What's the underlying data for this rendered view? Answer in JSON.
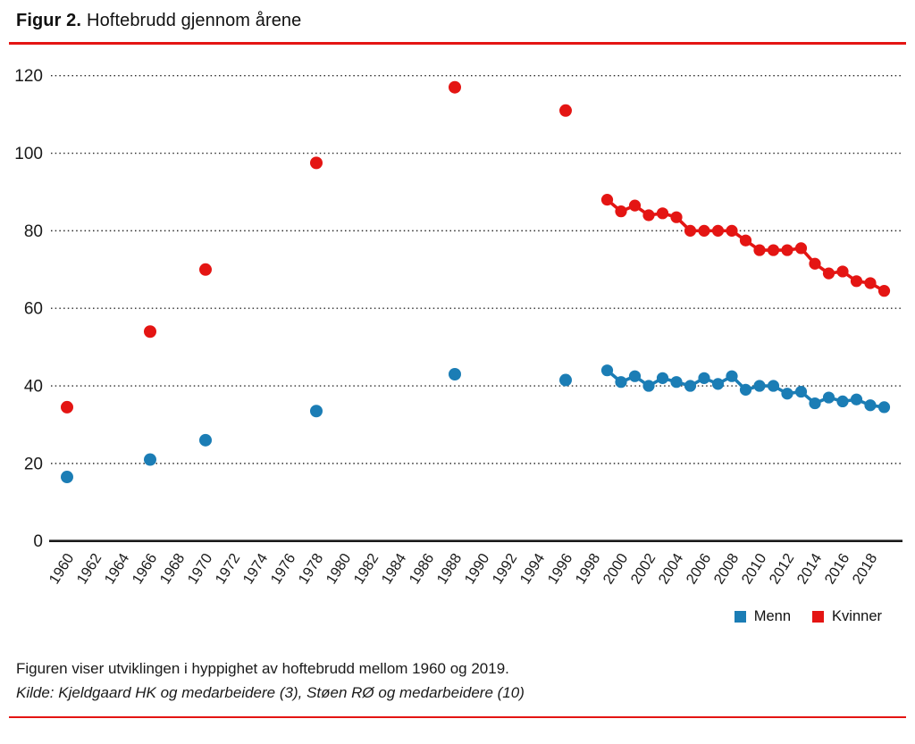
{
  "header": {
    "figure_label": "Figur 2.",
    "title": "Hoftebrudd gjennom årene"
  },
  "chart_data": {
    "type": "scatter",
    "title": "Figur 2. Hoftebrudd gjennom årene",
    "xlabel": "",
    "ylabel": "",
    "ylim": [
      0,
      120
    ],
    "yticks": [
      0,
      20,
      40,
      60,
      80,
      100,
      120
    ],
    "xticks": [
      1960,
      1962,
      1964,
      1966,
      1968,
      1970,
      1972,
      1974,
      1976,
      1978,
      1980,
      1982,
      1984,
      1986,
      1988,
      1990,
      1992,
      1994,
      1996,
      1998,
      2000,
      2002,
      2004,
      2006,
      2008,
      2010,
      2012,
      2014,
      2016,
      2018
    ],
    "grid": "horizontal-dotted",
    "legend_position": "bottom-right",
    "series": [
      {
        "name": "Menn",
        "color": "#1b7db5",
        "scatter": [
          [
            1960,
            16.5
          ],
          [
            1966,
            21
          ],
          [
            1970,
            26
          ],
          [
            1978,
            33.5
          ],
          [
            1988,
            43
          ],
          [
            1996,
            41.5
          ]
        ],
        "line": [
          [
            1999,
            44
          ],
          [
            2000,
            41
          ],
          [
            2001,
            42.5
          ],
          [
            2002,
            40
          ],
          [
            2003,
            42
          ],
          [
            2004,
            41
          ],
          [
            2005,
            40
          ],
          [
            2006,
            42
          ],
          [
            2007,
            40.5
          ],
          [
            2008,
            42.5
          ],
          [
            2009,
            39
          ],
          [
            2010,
            40
          ],
          [
            2011,
            40
          ],
          [
            2012,
            38
          ],
          [
            2013,
            38.5
          ],
          [
            2014,
            35.5
          ],
          [
            2015,
            37
          ],
          [
            2016,
            36
          ],
          [
            2017,
            36.5
          ],
          [
            2018,
            35
          ],
          [
            2019,
            34.5
          ]
        ]
      },
      {
        "name": "Kvinner",
        "color": "#e41513",
        "scatter": [
          [
            1960,
            34.5
          ],
          [
            1966,
            54
          ],
          [
            1970,
            70
          ],
          [
            1978,
            97.5
          ],
          [
            1988,
            117
          ],
          [
            1996,
            111
          ]
        ],
        "line": [
          [
            1999,
            88
          ],
          [
            2000,
            85
          ],
          [
            2001,
            86.5
          ],
          [
            2002,
            84
          ],
          [
            2003,
            84.5
          ],
          [
            2004,
            83.5
          ],
          [
            2005,
            80
          ],
          [
            2006,
            80
          ],
          [
            2007,
            80
          ],
          [
            2008,
            80
          ],
          [
            2009,
            77.5
          ],
          [
            2010,
            75
          ],
          [
            2011,
            75
          ],
          [
            2012,
            75
          ],
          [
            2013,
            75.5
          ],
          [
            2014,
            71.5
          ],
          [
            2015,
            69
          ],
          [
            2016,
            69.5
          ],
          [
            2017,
            67
          ],
          [
            2018,
            66.5
          ],
          [
            2019,
            64.5
          ]
        ]
      }
    ]
  },
  "footer": {
    "caption": "Figuren viser utviklingen i hyppighet av hoftebrudd mellom 1960 og 2019.",
    "source": "Kilde: Kjeldgaard HK og medarbeidere (3), Støen RØ og medarbeidere (10)"
  },
  "colors": {
    "rule_red": "#e41513",
    "axis_black": "#1a1a1a",
    "grid_black": "#2a2a2a"
  }
}
